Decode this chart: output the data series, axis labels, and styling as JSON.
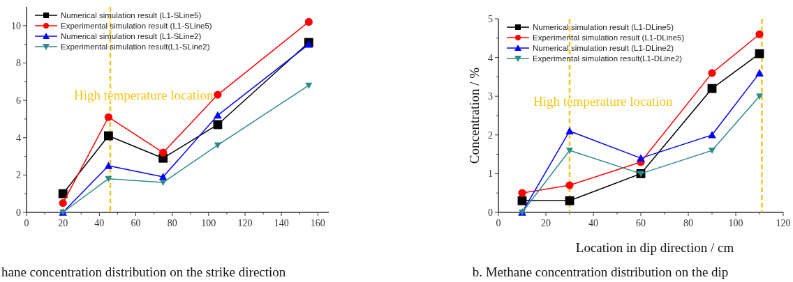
{
  "chart_data": [
    {
      "type": "line",
      "annotations": [
        "hane concentration distribution on the strike direction"
      ],
      "xlim": [
        0,
        166
      ],
      "ylim": [
        0,
        11
      ],
      "xticks": [
        0,
        {
          "value": 10,
          "label": null
        },
        20,
        {
          "value": 30,
          "label": null
        },
        40,
        {
          "value": 50,
          "label": null
        },
        60,
        {
          "value": 70,
          "label": null
        },
        80,
        {
          "value": 90,
          "label": null
        },
        100,
        {
          "value": 110,
          "label": null
        },
        120,
        {
          "value": 130,
          "label": null
        },
        140,
        {
          "value": 150,
          "label": null
        },
        160
      ],
      "yticks": [
        0,
        {
          "value": 1,
          "label": null
        },
        2,
        {
          "value": 3,
          "label": null
        },
        4,
        {
          "value": 5,
          "label": null
        },
        6,
        {
          "value": 7,
          "label": null
        },
        8,
        {
          "value": 9,
          "label": null
        },
        10
      ],
      "legend": "top left",
      "grid": false,
      "line_style": "solid",
      "ref_lines": [
        {
          "axis": "x",
          "value": 46,
          "label": "High temperature location",
          "color": "#f5c518",
          "line_style": "dashed"
        }
      ],
      "x": [
        20,
        45,
        75,
        105,
        155
      ],
      "series": [
        {
          "name": "Numerical simulation result (L1-SLine5)",
          "color": "#000000",
          "marker": "square",
          "values": [
            1,
            4.1,
            2.9,
            4.7,
            9.1
          ]
        },
        {
          "name": "Experimental simulation result (L1-SLine5)",
          "color": "#ff0000",
          "marker": "circle",
          "values": [
            0.5,
            5.1,
            3.2,
            6.3,
            10.2
          ]
        },
        {
          "name": "Numerical simulation result (L1-SLine2)",
          "color": "#0000ff",
          "marker": "triangle",
          "values": [
            0,
            2.5,
            1.9,
            5.2,
            9.0
          ]
        },
        {
          "name": "Experimental simulation result(L1-SLine2)",
          "color": "#2e8b8b",
          "marker": "triangle-down",
          "values": [
            0,
            1.8,
            1.6,
            3.6,
            6.8
          ]
        }
      ]
    },
    {
      "type": "line",
      "ylabel": "Concentration / %",
      "xlabel": "Location in dip direction / cm",
      "annotations": [
        "b. Methane concentration distribution on the dip"
      ],
      "xlim": [
        0,
        120
      ],
      "ylim": [
        0,
        5
      ],
      "xticks": [
        0,
        {
          "value": 10,
          "label": null
        },
        20,
        {
          "value": 30,
          "label": null
        },
        40,
        {
          "value": 50,
          "label": null
        },
        60,
        {
          "value": 70,
          "label": null
        },
        80,
        {
          "value": 90,
          "label": null
        },
        100,
        {
          "value": 110,
          "label": null
        },
        120
      ],
      "yticks": [
        0,
        {
          "value": 0.5,
          "label": null
        },
        1,
        {
          "value": 1.5,
          "label": null
        },
        2,
        {
          "value": 2.5,
          "label": null
        },
        3,
        {
          "value": 3.5,
          "label": null
        },
        4,
        {
          "value": 4.5,
          "label": null
        },
        5
      ],
      "legend": "top left",
      "grid": false,
      "line_style": "solid",
      "ref_lines": [
        {
          "axis": "x",
          "value": 30,
          "label": "High temperature location",
          "color": "#f5c518",
          "line_style": "dashed"
        },
        {
          "axis": "x",
          "value": 111,
          "color": "#f5c518",
          "line_style": "dashed"
        }
      ],
      "x": [
        10,
        30,
        60,
        90,
        110
      ],
      "series": [
        {
          "name": "Numerical simulation result (L1-DLine5)",
          "color": "#000000",
          "marker": "square",
          "values": [
            0.3,
            0.3,
            1.0,
            3.2,
            4.1
          ]
        },
        {
          "name": "Experimental simulation result (L1-DLine5)",
          "color": "#ff0000",
          "marker": "circle",
          "values": [
            0.5,
            0.7,
            1.3,
            3.6,
            4.6
          ]
        },
        {
          "name": "Numerical simulation result (L1-DLine2)",
          "color": "#0000ff",
          "marker": "triangle",
          "values": [
            0,
            2.1,
            1.4,
            2.0,
            3.6
          ]
        },
        {
          "name": "Experimental simulation result(L1-DLine2)",
          "color": "#2e8b8b",
          "marker": "triangle-down",
          "values": [
            0,
            1.6,
            1.0,
            1.6,
            3.0
          ]
        }
      ]
    }
  ]
}
